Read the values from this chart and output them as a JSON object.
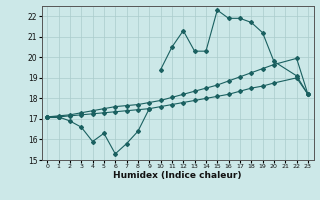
{
  "xlabel": "Humidex (Indice chaleur)",
  "bg_color": "#cce8e8",
  "grid_color": "#aacccc",
  "line_color": "#1a6060",
  "x_values": [
    0,
    1,
    2,
    3,
    4,
    5,
    6,
    7,
    8,
    9,
    10,
    11,
    12,
    13,
    14,
    15,
    16,
    17,
    18,
    19,
    20,
    21,
    22,
    23
  ],
  "line_low": [
    17.1,
    17.1,
    16.9,
    16.6,
    15.9,
    16.3,
    15.3,
    15.8,
    16.4,
    17.5,
    null,
    null,
    null,
    null,
    null,
    null,
    null,
    null,
    null,
    null,
    null,
    null,
    null,
    null
  ],
  "line_high_a": [
    17.1,
    17.1
  ],
  "line_high_b": [
    19.4,
    20.5,
    21.3,
    20.3,
    20.3,
    22.3,
    21.9,
    21.9,
    21.7,
    21.2,
    19.8,
    null,
    19.1,
    18.2
  ],
  "line_high_b_x": [
    10,
    11,
    12,
    13,
    14,
    15,
    16,
    17,
    18,
    19,
    20,
    21,
    22,
    23
  ],
  "line_trend": [
    17.1,
    17.15,
    17.2,
    17.3,
    17.4,
    17.5,
    17.6,
    17.65,
    17.7,
    17.8,
    17.9,
    18.05,
    18.2,
    18.35,
    18.5,
    18.65,
    18.85,
    19.05,
    19.25,
    19.45,
    19.65,
    null,
    19.95,
    18.2
  ],
  "line_flat": [
    17.1,
    17.1,
    17.15,
    17.2,
    17.25,
    17.3,
    17.35,
    17.4,
    17.45,
    17.5,
    17.6,
    17.7,
    17.8,
    17.9,
    18.0,
    18.1,
    18.2,
    18.35,
    18.5,
    18.6,
    18.75,
    null,
    19.0,
    18.2
  ],
  "ylim": [
    15,
    22.5
  ],
  "xlim": [
    -0.5,
    23.5
  ],
  "yticks": [
    15,
    16,
    17,
    18,
    19,
    20,
    21,
    22
  ],
  "xticks": [
    0,
    1,
    2,
    3,
    4,
    5,
    6,
    7,
    8,
    9,
    10,
    11,
    12,
    13,
    14,
    15,
    16,
    17,
    18,
    19,
    20,
    21,
    22,
    23
  ]
}
